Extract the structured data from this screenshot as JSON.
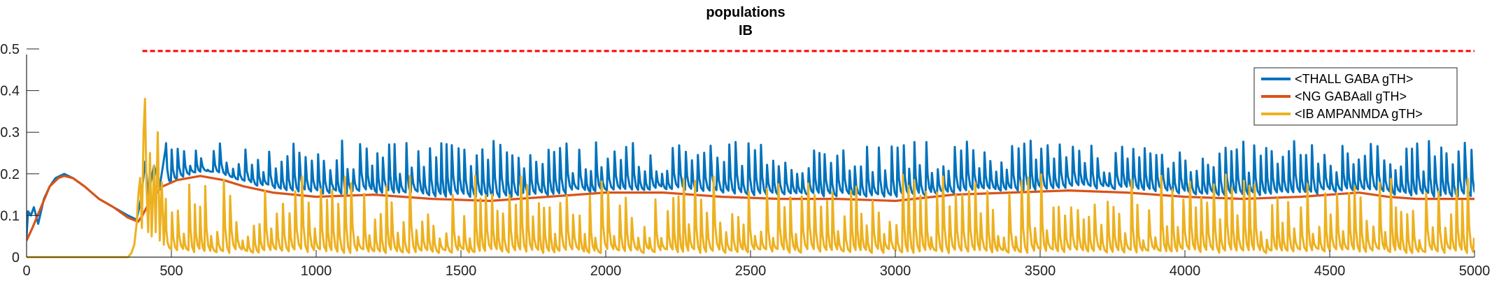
{
  "chart_data": {
    "type": "line",
    "title": "populations",
    "subtitle": "IB",
    "xlim": [
      0,
      5000
    ],
    "ylim": [
      0,
      0.5
    ],
    "xticks": [
      0,
      500,
      1000,
      1500,
      2000,
      2500,
      3000,
      3500,
      4000,
      4500,
      5000
    ],
    "yticks": [
      0,
      0.1,
      0.2,
      0.3,
      0.4,
      0.5
    ],
    "xtick_labels": [
      "0",
      "500",
      "1000",
      "1500",
      "2000",
      "2500",
      "3000",
      "3500",
      "4000",
      "4500",
      "5000"
    ],
    "ytick_labels": [
      "0",
      "0.1",
      "0.2",
      "0.3",
      "0.4",
      "0.5"
    ],
    "grid": false,
    "legend_position": "top-right",
    "colors": {
      "thall": "#0072bd",
      "ng": "#d95319",
      "ib": "#edb120",
      "threshold": "#ff0000",
      "axis": "#262626"
    },
    "threshold_line": {
      "y": 0.495,
      "x_start": 400,
      "x_end": 5000,
      "style": "dashed"
    },
    "series": [
      {
        "key": "thall",
        "name": "<THALL GABA gTH>",
        "description": "Starts near 0.1, rises with the orange curve to ~0.2 at t≈130, decays to ~0.09 near t≈380, then oscillates with periodic spikes (~20 ms period) from a baseline of ~0.14 to peaks of 0.20–0.28.",
        "points": [
          [
            0,
            0.05
          ],
          [
            5,
            0.11
          ],
          [
            15,
            0.1
          ],
          [
            25,
            0.12
          ],
          [
            40,
            0.08
          ],
          [
            60,
            0.14
          ],
          [
            80,
            0.17
          ],
          [
            100,
            0.19
          ],
          [
            130,
            0.2
          ],
          [
            160,
            0.19
          ],
          [
            200,
            0.17
          ],
          [
            250,
            0.14
          ],
          [
            300,
            0.12
          ],
          [
            350,
            0.1
          ],
          [
            380,
            0.09
          ],
          [
            395,
            0.14
          ],
          [
            410,
            0.23
          ],
          [
            420,
            0.15
          ],
          [
            440,
            0.22
          ],
          [
            460,
            0.17
          ],
          [
            480,
            0.26
          ]
        ],
        "oscillation": {
          "start": 480,
          "end": 5000,
          "period": 20.5,
          "baseline": 0.14,
          "peak_min": 0.2,
          "peak_max": 0.28
        }
      },
      {
        "key": "ng",
        "name": "<NG GABAall gTH>",
        "description": "Smooth curve rising from ~0.05 to ~0.195 at t≈130, decaying to ~0.085 at t≈380, rising to ~0.195 around t≈600, then slowly settling into a gentle wave between ~0.13 and ~0.16 for the remainder.",
        "points": [
          [
            0,
            0.04
          ],
          [
            20,
            0.07
          ],
          [
            50,
            0.12
          ],
          [
            80,
            0.17
          ],
          [
            110,
            0.19
          ],
          [
            130,
            0.195
          ],
          [
            160,
            0.19
          ],
          [
            200,
            0.17
          ],
          [
            250,
            0.14
          ],
          [
            300,
            0.12
          ],
          [
            350,
            0.095
          ],
          [
            385,
            0.085
          ],
          [
            400,
            0.1
          ],
          [
            430,
            0.14
          ],
          [
            470,
            0.17
          ],
          [
            520,
            0.185
          ],
          [
            600,
            0.195
          ],
          [
            680,
            0.185
          ],
          [
            750,
            0.17
          ],
          [
            850,
            0.155
          ],
          [
            1000,
            0.145
          ],
          [
            1200,
            0.15
          ],
          [
            1400,
            0.14
          ],
          [
            1600,
            0.135
          ],
          [
            1800,
            0.145
          ],
          [
            2000,
            0.155
          ],
          [
            2200,
            0.155
          ],
          [
            2400,
            0.145
          ],
          [
            2600,
            0.14
          ],
          [
            2800,
            0.14
          ],
          [
            3000,
            0.135
          ],
          [
            3200,
            0.15
          ],
          [
            3400,
            0.155
          ],
          [
            3600,
            0.16
          ],
          [
            3800,
            0.155
          ],
          [
            4000,
            0.145
          ],
          [
            4200,
            0.14
          ],
          [
            4400,
            0.145
          ],
          [
            4600,
            0.155
          ],
          [
            4700,
            0.145
          ],
          [
            4800,
            0.14
          ],
          [
            5000,
            0.14
          ]
        ]
      },
      {
        "key": "ib",
        "name": "<IB AMPANMDA gTH>",
        "description": "Flat at 0 until t≈360, then a burst with a peak of ~0.38 near t≈410 and ~0.30 near t≈455, followed by irregular spikes (~20 ms period) from ~0.01 up to 0.05–0.20 through t=5000.",
        "points": [
          [
            0,
            0.0
          ],
          [
            350,
            0.0
          ],
          [
            362,
            0.01
          ],
          [
            372,
            0.03
          ],
          [
            380,
            0.08
          ],
          [
            386,
            0.15
          ],
          [
            392,
            0.19
          ],
          [
            398,
            0.07
          ],
          [
            404,
            0.3
          ],
          [
            409,
            0.38
          ],
          [
            414,
            0.17
          ],
          [
            420,
            0.06
          ],
          [
            426,
            0.25
          ],
          [
            432,
            0.05
          ],
          [
            440,
            0.22
          ],
          [
            446,
            0.06
          ],
          [
            453,
            0.3
          ],
          [
            460,
            0.04
          ],
          [
            467,
            0.18
          ],
          [
            474,
            0.03
          ],
          [
            481,
            0.14
          ]
        ],
        "oscillation": {
          "start": 481,
          "end": 5000,
          "period": 20.5,
          "baseline": 0.01,
          "peak_min": 0.04,
          "peak_max": 0.2
        }
      }
    ]
  }
}
